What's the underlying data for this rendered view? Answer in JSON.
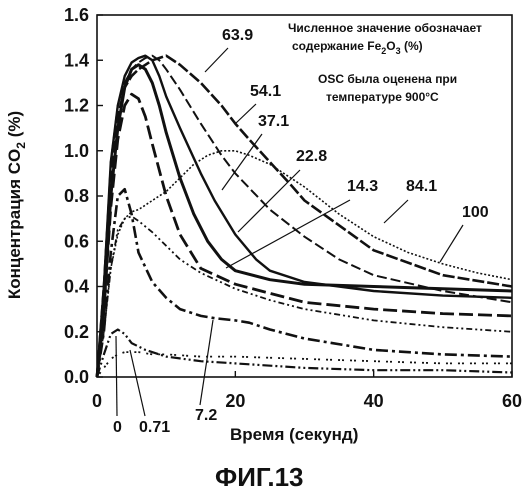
{
  "chart_data": {
    "type": "line",
    "xlabel": "Время (секунд)",
    "ylabel": "Концентрация CO",
    "ylabel_sub": "2",
    "ylabel_tail": " (%)",
    "xlim": [
      0,
      60
    ],
    "ylim": [
      0,
      1.6
    ],
    "xticks": [
      "0",
      "20",
      "40",
      "60"
    ],
    "yticks": [
      "0.0",
      "0.2",
      "0.4",
      "0.6",
      "0.8",
      "1.0",
      "1.2",
      "1.4",
      "1.6"
    ],
    "grid": false,
    "annotation_lines": [
      {
        "pre": "Численное значение обозначает",
        "sub": "",
        "post": ""
      },
      {
        "pre": "содержание Fe",
        "sub": "2",
        "mid": "O",
        "sub2": "3",
        "post": " (%)"
      },
      {
        "pre": "OSC была оценена при",
        "sub": "",
        "post": ""
      },
      {
        "pre": "температуре 900°C",
        "sub": "",
        "post": ""
      }
    ],
    "figure_caption": "ФИГ.13",
    "series": [
      {
        "name": "0",
        "x": [
          0,
          1,
          2,
          3,
          4,
          5,
          7,
          10,
          15,
          20,
          30,
          40,
          50,
          60
        ],
        "y": [
          0,
          0.1,
          0.19,
          0.21,
          0.19,
          0.15,
          0.12,
          0.09,
          0.07,
          0.06,
          0.04,
          0.03,
          0.03,
          0.02
        ]
      },
      {
        "name": "0.71",
        "x": [
          0,
          1,
          2,
          3,
          4,
          5,
          6,
          8,
          10,
          15,
          20,
          30,
          40,
          50,
          60
        ],
        "y": [
          0,
          0.04,
          0.08,
          0.1,
          0.11,
          0.11,
          0.11,
          0.1,
          0.1,
          0.09,
          0.09,
          0.08,
          0.07,
          0.06,
          0.06
        ]
      },
      {
        "name": "7.2",
        "x": [
          0,
          1,
          2,
          3,
          4,
          5,
          6,
          8,
          10,
          12,
          15,
          17,
          20,
          22,
          25,
          30,
          40,
          50,
          60
        ],
        "y": [
          0,
          0.2,
          0.55,
          0.8,
          0.83,
          0.72,
          0.55,
          0.42,
          0.35,
          0.3,
          0.27,
          0.26,
          0.25,
          0.24,
          0.21,
          0.17,
          0.12,
          0.1,
          0.09
        ]
      },
      {
        "name": "14.3",
        "x": [
          0,
          1,
          2,
          3,
          4,
          5,
          6,
          7,
          8,
          10,
          12,
          15,
          20,
          25,
          30,
          40,
          50,
          60
        ],
        "y": [
          0,
          0.3,
          0.75,
          1.05,
          1.2,
          1.25,
          1.23,
          1.15,
          1.03,
          0.8,
          0.63,
          0.48,
          0.41,
          0.37,
          0.33,
          0.3,
          0.28,
          0.27
        ]
      },
      {
        "name": "22.8",
        "x": [
          0,
          1,
          2,
          3,
          4,
          5,
          6,
          7,
          8,
          9,
          10,
          12,
          14,
          16,
          18,
          20,
          25,
          30,
          40,
          50,
          60
        ],
        "y": [
          0,
          0.3,
          0.8,
          1.1,
          1.28,
          1.36,
          1.38,
          1.36,
          1.3,
          1.2,
          1.08,
          0.88,
          0.72,
          0.6,
          0.52,
          0.47,
          0.43,
          0.41,
          0.4,
          0.39,
          0.38
        ]
      },
      {
        "name": "37.1",
        "x": [
          0,
          1,
          2,
          3,
          4,
          5,
          6,
          7,
          8,
          9,
          10,
          12,
          15,
          17,
          20,
          23,
          25,
          30,
          40,
          50,
          60
        ],
        "y": [
          0,
          0.4,
          0.95,
          1.2,
          1.33,
          1.39,
          1.41,
          1.42,
          1.4,
          1.33,
          1.24,
          1.1,
          0.9,
          0.78,
          0.63,
          0.52,
          0.47,
          0.42,
          0.38,
          0.36,
          0.35
        ]
      },
      {
        "name": "54.1",
        "x": [
          0,
          1,
          2,
          3,
          4,
          5,
          6,
          7,
          8,
          9,
          10,
          12,
          15,
          18,
          20,
          25,
          30,
          35,
          40,
          50,
          60
        ],
        "y": [
          0,
          0.4,
          0.95,
          1.2,
          1.3,
          1.36,
          1.39,
          1.41,
          1.42,
          1.4,
          1.36,
          1.27,
          1.12,
          0.98,
          0.9,
          0.74,
          0.62,
          0.52,
          0.45,
          0.38,
          0.33
        ]
      },
      {
        "name": "63.9",
        "x": [
          0,
          1,
          2,
          3,
          4,
          5,
          6,
          7,
          8,
          9,
          10,
          12,
          15,
          18,
          20,
          22,
          25,
          28,
          30,
          40,
          50,
          60
        ],
        "y": [
          0,
          0.4,
          0.9,
          1.15,
          1.28,
          1.33,
          1.36,
          1.38,
          1.4,
          1.41,
          1.42,
          1.38,
          1.3,
          1.2,
          1.12,
          1.05,
          0.95,
          0.85,
          0.78,
          0.56,
          0.45,
          0.4
        ]
      },
      {
        "name": "84.1",
        "x": [
          0,
          1,
          2,
          3,
          4,
          5,
          6,
          7,
          8,
          10,
          12,
          14,
          16,
          18,
          20,
          22,
          25,
          28,
          30,
          35,
          40,
          45,
          50,
          55,
          60
        ],
        "y": [
          0,
          0.2,
          0.48,
          0.63,
          0.7,
          0.73,
          0.74,
          0.76,
          0.78,
          0.82,
          0.88,
          0.94,
          0.98,
          1.0,
          1.0,
          0.98,
          0.94,
          0.88,
          0.84,
          0.72,
          0.62,
          0.55,
          0.5,
          0.46,
          0.43
        ]
      },
      {
        "name": "100",
        "x": [
          0,
          1,
          2,
          3,
          4,
          5,
          6,
          8,
          10,
          12,
          15,
          20,
          25,
          30,
          40,
          50,
          60
        ],
        "y": [
          0,
          0.2,
          0.48,
          0.65,
          0.7,
          0.71,
          0.69,
          0.64,
          0.58,
          0.52,
          0.46,
          0.39,
          0.34,
          0.3,
          0.25,
          0.22,
          0.2
        ]
      }
    ]
  }
}
